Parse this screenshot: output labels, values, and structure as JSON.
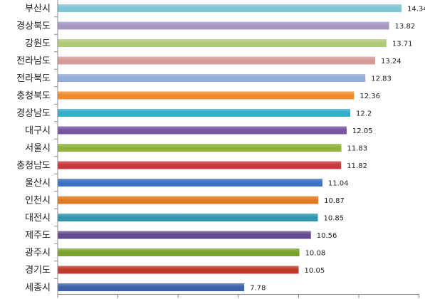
{
  "chart_data": {
    "type": "bar",
    "orientation": "horizontal",
    "categories": [
      "부산시",
      "경상북도",
      "강원도",
      "전라남도",
      "전라북도",
      "충청북도",
      "경상남도",
      "대구시",
      "서울시",
      "충청남도",
      "울산시",
      "인천시",
      "대전시",
      "제주도",
      "광주시",
      "경기도",
      "세종시"
    ],
    "values": [
      14.34,
      13.82,
      13.71,
      13.24,
      12.83,
      12.36,
      12.2,
      12.05,
      11.83,
      11.82,
      11.04,
      10.87,
      10.85,
      10.56,
      10.08,
      10.05,
      7.78
    ],
    "value_labels": [
      "14.34",
      "13.82",
      "13.71",
      "13.24",
      "12.83",
      "12.36",
      "12.2",
      "12.05",
      "11.83",
      "11.82",
      "11.04",
      "10.87",
      "10.85",
      "10.56",
      "10.08",
      "10.05",
      "7.78"
    ],
    "colors": [
      "#7FC6D6",
      "#A897C6",
      "#AFC97B",
      "#D49B97",
      "#93ACD8",
      "#F08A2E",
      "#34AECB",
      "#7852A3",
      "#8FB33B",
      "#C8383C",
      "#3E72C2",
      "#E07B24",
      "#2F98AE",
      "#654A93",
      "#7BA22E",
      "#C0392B",
      "#3E63AC"
    ],
    "xlim": [
      0,
      15.08
    ],
    "legend": "none",
    "gridlines": false
  }
}
